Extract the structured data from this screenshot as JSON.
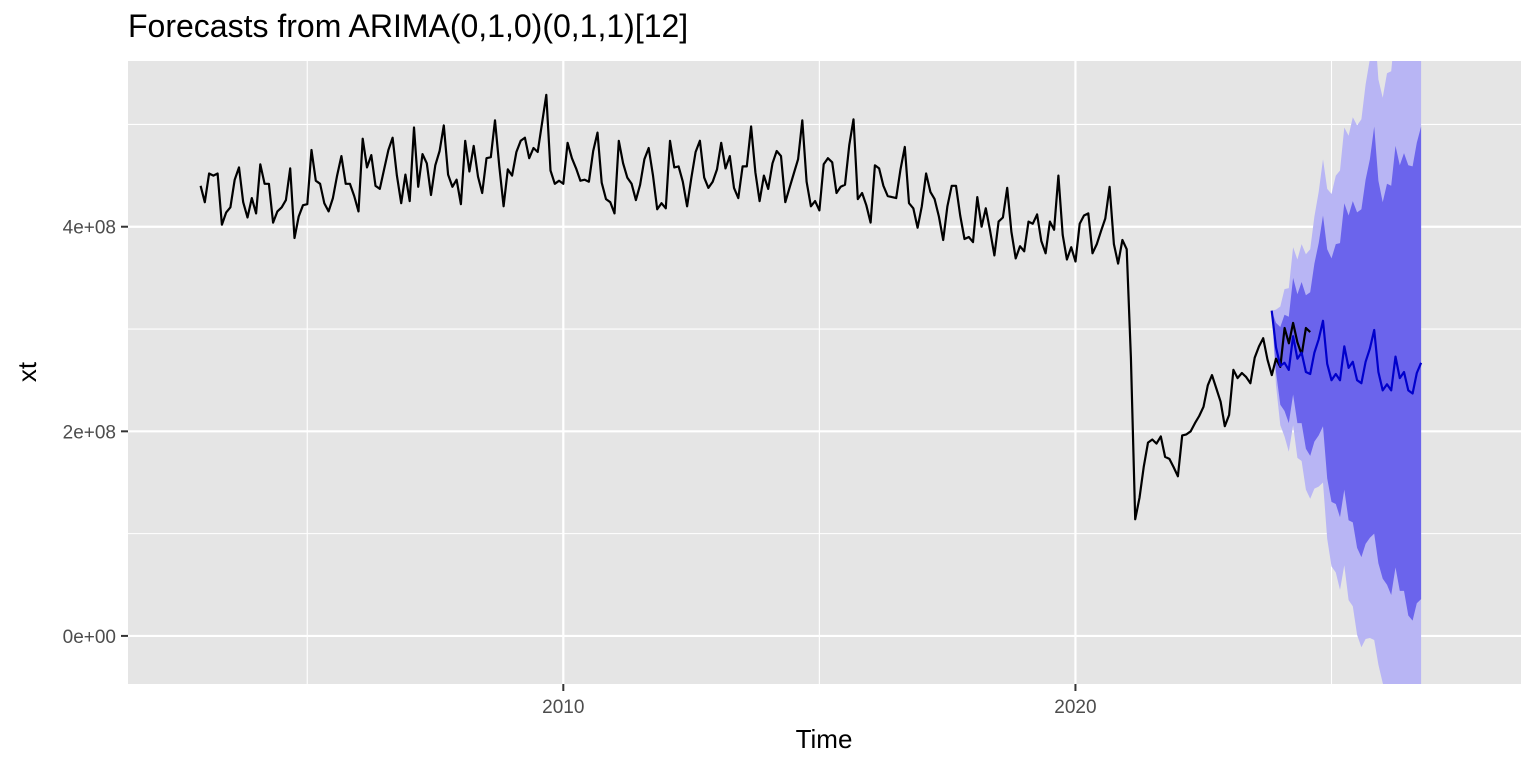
{
  "chart_data": {
    "type": "line",
    "title": "Forecasts from ARIMA(0,1,0)(0,1,1)[12]",
    "xlabel": "Time",
    "ylabel": "xt",
    "xlim": [
      2001.5,
      2028.7
    ],
    "ylim": [
      -47000000,
      562000000
    ],
    "x_ticks": [
      {
        "value": 2010,
        "label": "2010"
      },
      {
        "value": 2020,
        "label": "2020"
      }
    ],
    "y_ticks": [
      {
        "value": 0,
        "label": "0e+00"
      },
      {
        "value": 200000000,
        "label": "2e+08"
      },
      {
        "value": 400000000,
        "label": "4e+08"
      }
    ],
    "grid": true,
    "legend": "none",
    "colors": {
      "panel": "#e5e5e5",
      "grid": "#ffffff",
      "observed": "#000000",
      "forecast": "#0000cc",
      "band80": "#6b64ec",
      "band95": "#b8b5f4",
      "tick_text": "#4d4d4d",
      "tick_mark": "#333333"
    },
    "observed": {
      "start": 2002.917,
      "frequency": 12,
      "values": [
        440000000,
        424000000,
        452000000,
        450000000,
        452000000,
        402000000,
        414000000,
        419000000,
        446000000,
        458000000,
        424000000,
        409000000,
        428000000,
        413000000,
        461000000,
        442000000,
        442000000,
        404000000,
        415000000,
        419000000,
        426000000,
        457000000,
        389000000,
        410000000,
        421000000,
        422000000,
        475000000,
        445000000,
        442000000,
        423000000,
        415000000,
        428000000,
        450000000,
        469000000,
        442000000,
        442000000,
        430000000,
        415000000,
        486000000,
        458000000,
        470000000,
        440000000,
        437000000,
        456000000,
        475000000,
        487000000,
        450000000,
        423000000,
        451000000,
        425000000,
        497000000,
        439000000,
        471000000,
        462000000,
        431000000,
        460000000,
        474000000,
        499000000,
        451000000,
        439000000,
        446000000,
        422000000,
        484000000,
        454000000,
        479000000,
        449000000,
        433000000,
        467000000,
        468000000,
        504000000,
        459000000,
        420000000,
        456000000,
        450000000,
        473000000,
        484000000,
        487000000,
        467000000,
        477000000,
        473000000,
        501000000,
        529000000,
        455000000,
        442000000,
        445000000,
        442000000,
        482000000,
        467000000,
        457000000,
        445000000,
        446000000,
        444000000,
        474000000,
        492000000,
        443000000,
        427000000,
        424000000,
        413000000,
        484000000,
        462000000,
        448000000,
        442000000,
        426000000,
        441000000,
        466000000,
        477000000,
        450000000,
        417000000,
        423000000,
        418000000,
        484000000,
        458000000,
        459000000,
        444000000,
        420000000,
        448000000,
        473000000,
        484000000,
        448000000,
        438000000,
        444000000,
        456000000,
        482000000,
        457000000,
        469000000,
        438000000,
        428000000,
        459000000,
        459000000,
        498000000,
        453000000,
        425000000,
        450000000,
        437000000,
        462000000,
        474000000,
        469000000,
        424000000,
        438000000,
        452000000,
        466000000,
        504000000,
        444000000,
        420000000,
        425000000,
        416000000,
        461000000,
        467000000,
        463000000,
        433000000,
        439000000,
        441000000,
        480000000,
        505000000,
        427000000,
        433000000,
        421000000,
        404000000,
        460000000,
        457000000,
        440000000,
        430000000,
        429000000,
        428000000,
        456000000,
        478000000,
        423000000,
        418000000,
        399000000,
        420000000,
        452000000,
        434000000,
        427000000,
        410000000,
        387000000,
        420000000,
        440000000,
        440000000,
        411000000,
        388000000,
        390000000,
        385000000,
        429000000,
        400000000,
        418000000,
        396000000,
        372000000,
        405000000,
        409000000,
        438000000,
        395000000,
        369000000,
        381000000,
        376000000,
        405000000,
        403000000,
        412000000,
        386000000,
        374000000,
        405000000,
        397000000,
        450000000,
        392000000,
        368000000,
        380000000,
        366000000,
        403000000,
        411000000,
        413000000,
        374000000,
        383000000,
        396000000,
        408000000,
        439000000,
        383000000,
        364000000,
        387000000,
        378000000,
        272000000,
        114000000,
        135000000,
        165000000,
        189000000,
        192000000,
        188000000,
        195000000,
        175000000,
        173000000,
        165000000,
        156000000,
        196000000,
        197000000,
        200000000,
        208000000,
        215000000,
        224000000,
        245000000,
        255000000,
        242000000,
        229000000,
        205000000,
        216000000,
        260000000,
        252000000,
        257000000,
        253000000,
        247000000,
        272000000,
        283000000,
        291000000,
        270000000,
        255000000,
        271000000,
        263000000,
        301000000,
        286000000,
        306000000,
        287000000,
        275000000,
        301000000,
        297000000
      ]
    },
    "forecast": {
      "start": 2023.833,
      "frequency": 12,
      "mean": [
        318000000,
        282000000,
        264000000,
        267000000,
        260000000,
        293000000,
        271000000,
        277000000,
        258000000,
        256000000,
        277000000,
        290000000,
        308000000,
        266000000,
        250000000,
        256000000,
        250000000,
        283000000,
        262000000,
        268000000,
        250000000,
        247000000,
        268000000,
        281000000,
        299000000,
        258000000,
        240000000,
        246000000,
        240000000,
        273000000,
        252000000,
        258000000,
        240000000,
        237000000,
        257000000,
        267000000
      ],
      "lower80": [
        318000000,
        258000000,
        226000000,
        220000000,
        208000000,
        236000000,
        208000000,
        208000000,
        183000000,
        176000000,
        190000000,
        196000000,
        205000000,
        154000000,
        131000000,
        129000000,
        116000000,
        143000000,
        113000000,
        111000000,
        86000000,
        77000000,
        90000000,
        96000000,
        100000000,
        71000000,
        56000000,
        50000000,
        40000000,
        67000000,
        44000000,
        44000000,
        20000000,
        15000000,
        32000000,
        36000000
      ],
      "upper80": [
        318000000,
        306000000,
        302000000,
        314000000,
        312000000,
        350000000,
        334000000,
        346000000,
        333000000,
        336000000,
        364000000,
        384000000,
        411000000,
        378000000,
        369000000,
        383000000,
        384000000,
        423000000,
        411000000,
        425000000,
        414000000,
        417000000,
        446000000,
        466000000,
        498000000,
        445000000,
        424000000,
        442000000,
        440000000,
        479000000,
        460000000,
        472000000,
        460000000,
        459000000,
        482000000,
        498000000
      ],
      "lower95": [
        318000000,
        245000000,
        206000000,
        195000000,
        180000000,
        206000000,
        174000000,
        171000000,
        143000000,
        134000000,
        144000000,
        146000000,
        150000000,
        95000000,
        68000000,
        62000000,
        45000000,
        69000000,
        35000000,
        29000000,
        1000000,
        -11000000,
        -3000000,
        -2000000,
        -4000000,
        -28000000,
        -46000000,
        -58000000,
        -72000000,
        -49000000,
        -74000000,
        -79000000,
        -106000000,
        -114000000,
        -101000000,
        -102000000
      ],
      "upper95": [
        318000000,
        319000000,
        322000000,
        339000000,
        340000000,
        380000000,
        368000000,
        383000000,
        373000000,
        378000000,
        410000000,
        434000000,
        466000000,
        437000000,
        432000000,
        450000000,
        455000000,
        497000000,
        489000000,
        507000000,
        499000000,
        505000000,
        539000000,
        564000000,
        602000000,
        544000000,
        526000000,
        550000000,
        552000000,
        595000000,
        578000000,
        595000000,
        586000000,
        588000000,
        615000000,
        636000000
      ]
    }
  }
}
